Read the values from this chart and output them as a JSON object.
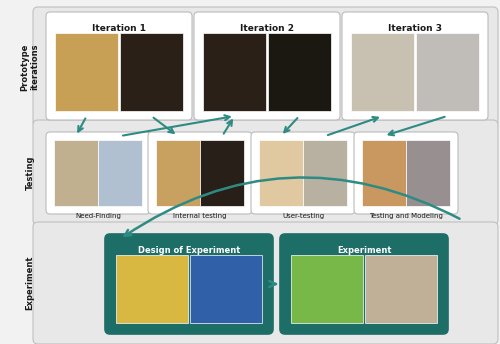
{
  "bg_color": "#f2f2f2",
  "teal": "#2e8b84",
  "dark_teal": "#1e6e68",
  "light_gray": "#e6e6e6",
  "border_gray": "#c8c8c8",
  "text_dark": "#1a1a1a",
  "white": "#ffffff",
  "section_labels": [
    "Prototype\niterations",
    "Testing",
    "Experiment"
  ],
  "iteration_titles": [
    "Iteration 1",
    "Iteration 2",
    "Iteration 3"
  ],
  "testing_labels": [
    "Need-Finding",
    "Internal testing",
    "User-testing",
    "Testing and Modeling"
  ],
  "experiment_labels": [
    "Design of Experiment",
    "Experiment"
  ],
  "photo_colors_iter": [
    [
      "#c8a055",
      "#2a2018"
    ],
    [
      "#2a2018",
      "#1a1810"
    ],
    [
      "#c8c0b0",
      "#c0bcb8"
    ]
  ],
  "photo_colors_test": [
    [
      "#c0b090",
      "#b0c0d0"
    ],
    [
      "#c8a060",
      "#282018"
    ],
    [
      "#e0c8a0",
      "#b8b0a0"
    ],
    [
      "#c89860",
      "#989090"
    ]
  ],
  "photo_colors_exp": [
    [
      "#d8b840",
      "#3060a8"
    ],
    [
      "#78b848",
      "#c0b098"
    ]
  ]
}
